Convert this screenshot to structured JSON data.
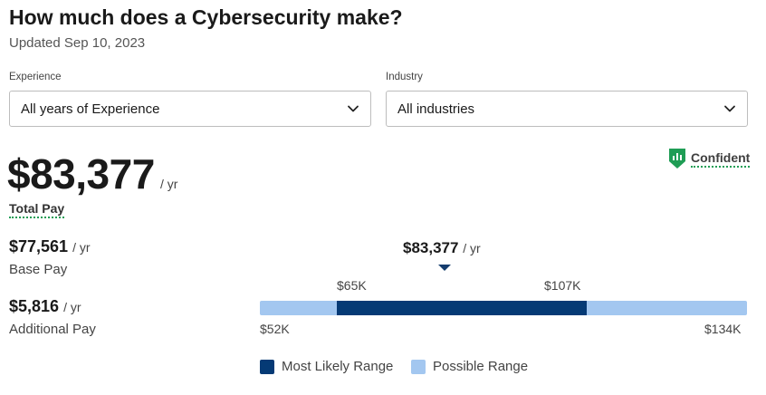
{
  "header": {
    "title": "How much does a Cybersecurity make?",
    "updated": "Updated Sep 10, 2023"
  },
  "filters": {
    "experience": {
      "label": "Experience",
      "value": "All years of Experience"
    },
    "industry": {
      "label": "Industry",
      "value": "All industries"
    }
  },
  "confidence": {
    "label": "Confident",
    "color": "#1f9d55"
  },
  "pay": {
    "total": {
      "value": "$83,377",
      "unit": "/ yr",
      "label": "Total Pay"
    },
    "base": {
      "value": "$77,561",
      "unit": "/ yr",
      "label": "Base Pay"
    },
    "additional": {
      "value": "$5,816",
      "unit": "/ yr",
      "label": "Additional Pay"
    }
  },
  "range": {
    "median_label": "$83,377",
    "median_unit": "/ yr",
    "median_value": 83377,
    "min": 52000,
    "max": 134000,
    "likely_low": 65000,
    "likely_high": 107000,
    "min_label": "$52K",
    "max_label": "$134K",
    "likely_low_label": "$65K",
    "likely_high_label": "$107K",
    "colors": {
      "likely": "#053a75",
      "possible": "#a3c7f0"
    }
  },
  "legend": {
    "likely": "Most Likely Range",
    "possible": "Possible Range"
  }
}
